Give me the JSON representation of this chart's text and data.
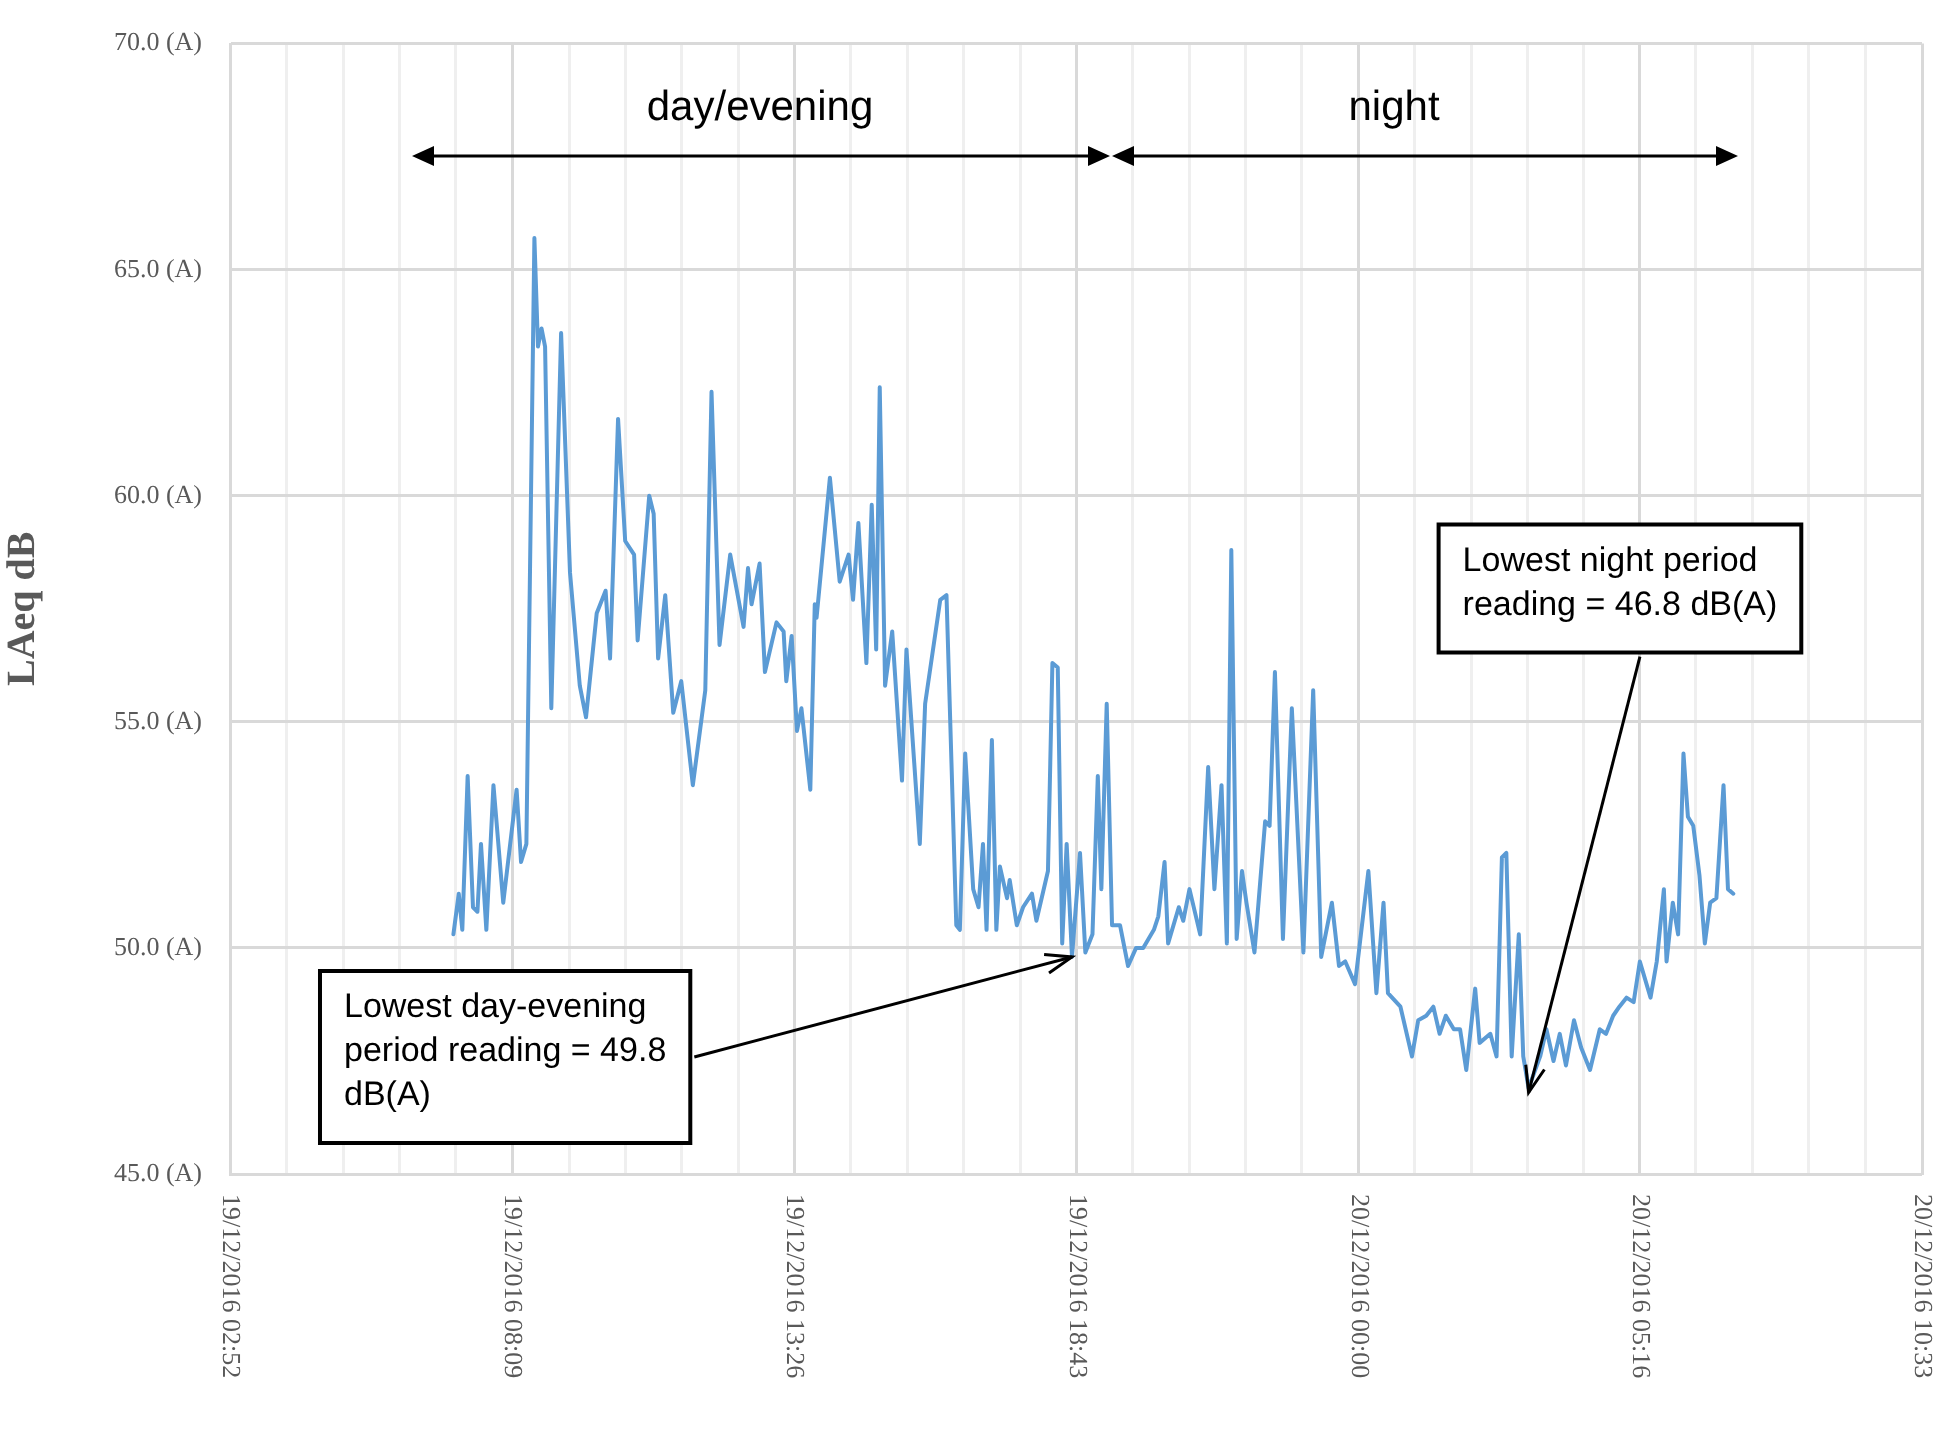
{
  "chart_data": {
    "type": "line",
    "ylabel": "LAeq dB",
    "x": [
      "2016-12-19T07:03",
      "2016-12-19T07:09",
      "2016-12-19T07:13",
      "2016-12-19T07:19",
      "2016-12-19T07:25",
      "2016-12-19T07:30",
      "2016-12-19T07:34",
      "2016-12-19T07:40",
      "2016-12-19T07:48",
      "2016-12-19T07:59",
      "2016-12-19T08:14",
      "2016-12-19T08:19",
      "2016-12-19T08:25",
      "2016-12-19T08:34",
      "2016-12-19T08:38",
      "2016-12-19T08:42",
      "2016-12-19T08:46",
      "2016-12-19T08:53",
      "2016-12-19T09:04",
      "2016-12-19T09:14",
      "2016-12-19T09:25",
      "2016-12-19T09:32",
      "2016-12-19T09:44",
      "2016-12-19T09:54",
      "2016-12-19T09:59",
      "2016-12-19T10:08",
      "2016-12-19T10:16",
      "2016-12-19T10:26",
      "2016-12-19T10:30",
      "2016-12-19T10:43",
      "2016-12-19T10:48",
      "2016-12-19T10:53",
      "2016-12-19T11:01",
      "2016-12-19T11:10",
      "2016-12-19T11:19",
      "2016-12-19T11:32",
      "2016-12-19T11:46",
      "2016-12-19T11:53",
      "2016-12-19T12:02",
      "2016-12-19T12:14",
      "2016-12-19T12:29",
      "2016-12-19T12:34",
      "2016-12-19T12:38",
      "2016-12-19T12:47",
      "2016-12-19T12:53",
      "2016-12-19T13:06",
      "2016-12-19T13:14",
      "2016-12-19T13:17",
      "2016-12-19T13:23",
      "2016-12-19T13:29",
      "2016-12-19T13:34",
      "2016-12-19T13:44",
      "2016-12-19T13:49",
      "2016-12-19T13:51",
      "2016-12-19T14:06",
      "2016-12-19T14:17",
      "2016-12-19T14:27",
      "2016-12-19T14:32",
      "2016-12-19T14:38",
      "2016-12-19T14:47",
      "2016-12-19T14:53",
      "2016-12-19T14:58",
      "2016-12-19T15:02",
      "2016-12-19T15:08",
      "2016-12-19T15:16",
      "2016-12-19T15:27",
      "2016-12-19T15:32",
      "2016-12-19T15:47",
      "2016-12-19T15:53",
      "2016-12-19T16:10",
      "2016-12-19T16:17",
      "2016-12-19T16:28",
      "2016-12-19T16:32",
      "2016-12-19T16:38",
      "2016-12-19T16:47",
      "2016-12-19T16:53",
      "2016-12-19T16:58",
      "2016-12-19T17:02",
      "2016-12-19T17:08",
      "2016-12-19T17:13",
      "2016-12-19T17:17",
      "2016-12-19T17:25",
      "2016-12-19T17:28",
      "2016-12-19T17:36",
      "2016-12-19T17:43",
      "2016-12-19T17:53",
      "2016-12-19T17:58",
      "2016-12-19T18:11",
      "2016-12-19T18:16",
      "2016-12-19T18:22",
      "2016-12-19T18:27",
      "2016-12-19T18:32",
      "2016-12-19T18:38",
      "2016-12-19T18:47",
      "2016-12-19T18:53",
      "2016-12-19T19:01",
      "2016-12-19T19:07",
      "2016-12-19T19:11",
      "2016-12-19T19:17",
      "2016-12-19T19:23",
      "2016-12-19T19:32",
      "2016-12-19T19:41",
      "2016-12-19T19:50",
      "2016-12-19T19:58",
      "2016-12-19T20:10",
      "2016-12-19T20:15",
      "2016-12-19T20:22",
      "2016-12-19T20:26",
      "2016-12-19T20:38",
      "2016-12-19T20:43",
      "2016-12-19T20:50",
      "2016-12-19T21:02",
      "2016-12-19T21:11",
      "2016-12-19T21:18",
      "2016-12-19T21:26",
      "2016-12-19T21:32",
      "2016-12-19T21:37",
      "2016-12-19T21:43",
      "2016-12-19T21:49",
      "2016-12-19T21:54",
      "2016-12-19T22:03",
      "2016-12-19T22:15",
      "2016-12-19T22:20",
      "2016-12-19T22:26",
      "2016-12-19T22:35",
      "2016-12-19T22:45",
      "2016-12-19T22:58",
      "2016-12-19T23:09",
      "2016-12-19T23:18",
      "2016-12-19T23:30",
      "2016-12-19T23:38",
      "2016-12-19T23:45",
      "2016-12-19T23:56",
      "2016-12-20T00:11",
      "2016-12-20T00:20",
      "2016-12-20T00:28",
      "2016-12-20T00:33",
      "2016-12-20T00:47",
      "2016-12-20T01:00",
      "2016-12-20T01:07",
      "2016-12-20T01:16",
      "2016-12-20T01:24",
      "2016-12-20T01:31",
      "2016-12-20T01:38",
      "2016-12-20T01:47",
      "2016-12-20T01:54",
      "2016-12-20T02:01",
      "2016-12-20T02:11",
      "2016-12-20T02:16",
      "2016-12-20T02:28",
      "2016-12-20T02:35",
      "2016-12-20T02:41",
      "2016-12-20T02:46",
      "2016-12-20T02:52",
      "2016-12-20T03:00",
      "2016-12-20T03:05",
      "2016-12-20T03:11",
      "2016-12-20T03:24",
      "2016-12-20T03:31",
      "2016-12-20T03:39",
      "2016-12-20T03:46",
      "2016-12-20T03:53",
      "2016-12-20T04:02",
      "2016-12-20T04:10",
      "2016-12-20T04:20",
      "2016-12-20T04:31",
      "2016-12-20T04:38",
      "2016-12-20T04:46",
      "2016-12-20T04:53",
      "2016-12-20T05:01",
      "2016-12-20T05:09",
      "2016-12-20T05:16",
      "2016-12-20T05:28",
      "2016-12-20T05:35",
      "2016-12-20T05:43",
      "2016-12-20T05:46",
      "2016-12-20T05:53",
      "2016-12-20T05:59",
      "2016-12-20T06:05",
      "2016-12-20T06:10",
      "2016-12-20T06:16",
      "2016-12-20T06:23",
      "2016-12-20T06:29",
      "2016-12-20T06:35",
      "2016-12-20T06:42",
      "2016-12-20T06:50",
      "2016-12-20T06:55",
      "2016-12-20T07:01"
    ],
    "series": [
      {
        "color": "#5b9bd5",
        "values": [
          50.3,
          51.2,
          50.4,
          53.8,
          50.9,
          50.8,
          52.3,
          50.4,
          53.6,
          51.0,
          53.5,
          51.9,
          52.3,
          65.7,
          63.3,
          63.7,
          63.3,
          55.3,
          63.6,
          58.3,
          55.8,
          55.1,
          57.4,
          57.9,
          56.4,
          61.7,
          59.0,
          58.7,
          56.8,
          60.0,
          59.6,
          56.4,
          57.8,
          55.2,
          55.9,
          53.6,
          55.7,
          62.3,
          56.7,
          58.7,
          57.1,
          58.4,
          57.6,
          58.5,
          56.1,
          57.2,
          57.0,
          55.9,
          56.9,
          54.8,
          55.3,
          53.5,
          57.6,
          57.3,
          60.4,
          58.1,
          58.7,
          57.7,
          59.4,
          56.3,
          59.8,
          56.6,
          62.4,
          55.8,
          57.0,
          53.7,
          56.6,
          52.3,
          55.4,
          57.7,
          57.8,
          50.5,
          50.4,
          54.3,
          51.3,
          50.9,
          52.3,
          50.4,
          54.6,
          50.4,
          51.8,
          51.1,
          51.5,
          50.5,
          50.9,
          51.2,
          50.6,
          51.7,
          56.3,
          56.2,
          50.1,
          52.3,
          49.8,
          52.1,
          49.9,
          50.3,
          53.8,
          51.3,
          55.4,
          50.5,
          50.5,
          49.6,
          50.0,
          50.0,
          50.4,
          50.7,
          51.9,
          50.1,
          50.9,
          50.6,
          51.3,
          50.3,
          54.0,
          51.3,
          53.6,
          50.1,
          58.8,
          50.2,
          51.7,
          51.0,
          49.9,
          52.8,
          52.7,
          56.1,
          50.2,
          55.3,
          49.9,
          55.7,
          49.8,
          51.0,
          49.6,
          49.7,
          49.2,
          51.7,
          49.0,
          51.0,
          49.0,
          48.7,
          47.6,
          48.4,
          48.5,
          48.7,
          48.1,
          48.5,
          48.2,
          48.2,
          47.3,
          49.1,
          47.9,
          48.1,
          47.6,
          52.0,
          52.1,
          47.6,
          50.3,
          47.6,
          46.9,
          47.6,
          48.2,
          47.5,
          48.1,
          47.4,
          48.4,
          47.8,
          47.3,
          48.2,
          48.1,
          48.5,
          48.7,
          48.9,
          48.8,
          49.7,
          48.9,
          49.7,
          51.3,
          49.7,
          51.0,
          50.3,
          54.3,
          52.9,
          52.7,
          51.6,
          50.1,
          51.0,
          51.1,
          53.6,
          51.3,
          51.2
        ]
      }
    ],
    "xlim": [
      "2016-12-19T02:52",
      "2016-12-20T10:33"
    ],
    "xticks": [
      {
        "value": "2016-12-19T02:52",
        "label": "19/12/2016 02:52"
      },
      {
        "value": "2016-12-19T03:55",
        "label": null
      },
      {
        "value": "2016-12-19T04:59",
        "label": null
      },
      {
        "value": "2016-12-19T06:02",
        "label": null
      },
      {
        "value": "2016-12-19T07:05",
        "label": null
      },
      {
        "value": "2016-12-19T08:09",
        "label": "19/12/2016 08:09"
      },
      {
        "value": "2016-12-19T09:13",
        "label": null
      },
      {
        "value": "2016-12-19T10:16",
        "label": null
      },
      {
        "value": "2016-12-19T11:19",
        "label": null
      },
      {
        "value": "2016-12-19T12:23",
        "label": null
      },
      {
        "value": "2016-12-19T13:26",
        "label": "19/12/2016 13:26"
      },
      {
        "value": "2016-12-19T14:29",
        "label": null
      },
      {
        "value": "2016-12-19T15:33",
        "label": null
      },
      {
        "value": "2016-12-19T16:36",
        "label": null
      },
      {
        "value": "2016-12-19T17:40",
        "label": null
      },
      {
        "value": "2016-12-19T18:43",
        "label": "19/12/2016 18:43"
      },
      {
        "value": "2016-12-19T19:46",
        "label": null
      },
      {
        "value": "2016-12-19T20:50",
        "label": null
      },
      {
        "value": "2016-12-19T21:53",
        "label": null
      },
      {
        "value": "2016-12-19T22:56",
        "label": null
      },
      {
        "value": "2016-12-20T00:00",
        "label": "20/12/2016 00:00"
      },
      {
        "value": "2016-12-20T01:03",
        "label": null
      },
      {
        "value": "2016-12-20T02:07",
        "label": null
      },
      {
        "value": "2016-12-20T03:10",
        "label": null
      },
      {
        "value": "2016-12-20T04:13",
        "label": null
      },
      {
        "value": "2016-12-20T05:16",
        "label": "20/12/2016 05:16"
      },
      {
        "value": "2016-12-20T06:19",
        "label": null
      },
      {
        "value": "2016-12-20T07:23",
        "label": null
      },
      {
        "value": "2016-12-20T08:26",
        "label": null
      },
      {
        "value": "2016-12-20T09:29",
        "label": null
      },
      {
        "value": "2016-12-20T10:33",
        "label": "20/12/2016 10:33"
      }
    ],
    "ylim": [
      45,
      70
    ],
    "yticks": [
      {
        "value": 45,
        "label": "45.0 (A)"
      },
      {
        "value": 50,
        "label": "50.0 (A)"
      },
      {
        "value": 55,
        "label": "55.0 (A)"
      },
      {
        "value": 60,
        "label": "60.0 (A)"
      },
      {
        "value": 65,
        "label": "65.0 (A)"
      },
      {
        "value": 70,
        "label": "70.0 (A)"
      }
    ],
    "annotations": [
      "day/evening",
      "night",
      {
        "text": "Lowest day-evening period reading = 49.8 dB(A)",
        "x": "2016-12-19T18:38",
        "y": 49.8
      },
      {
        "text": "Lowest night period reading = 46.8 dB(A)",
        "x": "2016-12-20T03:11",
        "y": 46.8
      }
    ],
    "grid": true,
    "legend": false,
    "marker": "none",
    "line_style": "solid"
  }
}
